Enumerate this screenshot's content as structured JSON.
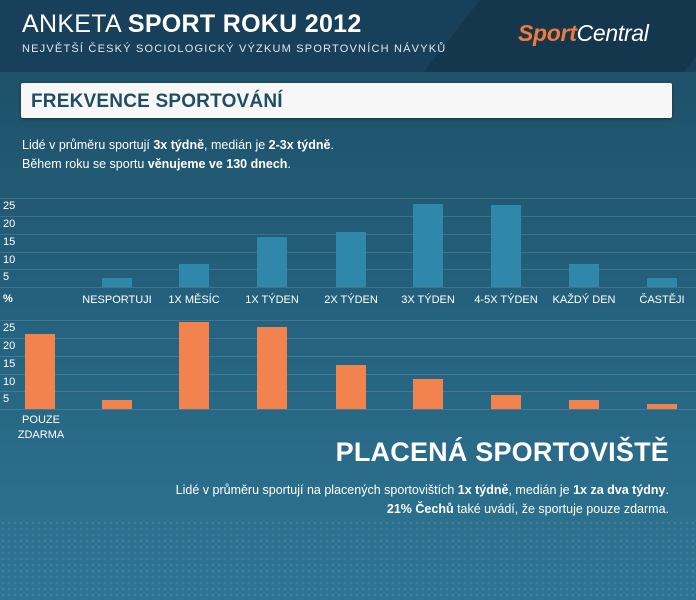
{
  "header": {
    "title_regular": "ANKETA ",
    "title_bold": "SPORT ROKU 2012",
    "subtitle": "NEJVĚTŠÍ ČESKÝ SOCIOLOGICKÝ VÝZKUM SPORTOVNÍCH NÁVYKŮ",
    "logo_part1": "Sport",
    "logo_part2": "Central"
  },
  "section": {
    "title": "FREKVENCE SPORTOVÁNÍ",
    "intro_l1_a": "Lidé v průměru sportují ",
    "intro_l1_b": "3x týdně",
    "intro_l1_c": ", medián je ",
    "intro_l1_d": "2-3x týdně",
    "intro_l1_e": ".",
    "intro_l2_a": "Během roku se sportu ",
    "intro_l2_b": "věnujeme ve 130 dnech",
    "intro_l2_c": "."
  },
  "paid": {
    "title": "PLACENÁ SPORTOVIŠTĚ",
    "l1_a": "Lidé v průměru sportují na placených sportovištích ",
    "l1_b": "1x týdně",
    "l1_c": ", medián je ",
    "l1_d": "1x za dva týdny",
    "l1_e": ".",
    "l2_a": "21% Čechů",
    "l2_b": " také uvádí, že sportuje pouze zdarma."
  },
  "chart_data": [
    {
      "type": "bar",
      "ylabel": "%",
      "ylim": [
        0,
        27
      ],
      "yticks": [
        5,
        10,
        15,
        20,
        25
      ],
      "categories": [
        "NESPORTUJI",
        "1X MĚSÍC",
        "1X TÝDEN",
        "2X TÝDEN",
        "3X TÝDEN",
        "4-5X TÝDEN",
        "KAŽDÝ DEN",
        "ČASTĚJI"
      ],
      "values": [
        2.5,
        6.5,
        14,
        15.5,
        23.5,
        23,
        6.5,
        2.5
      ],
      "color": "#2f88aa"
    },
    {
      "type": "bar",
      "ylim": [
        0,
        27
      ],
      "yticks": [
        5,
        10,
        15,
        20,
        25
      ],
      "categories": [
        "POUZE ZDARMA",
        "NESPORTUJI",
        "1X MĚSÍC",
        "1X TÝDEN",
        "2X TÝDEN",
        "3X TÝDEN",
        "4-5X TÝDEN",
        "KAŽDÝ DEN",
        "ČASTĚJI"
      ],
      "values": [
        21,
        2.5,
        24.5,
        23,
        12.5,
        8.5,
        4,
        2.5,
        1.5
      ],
      "color": "#f2834f"
    }
  ]
}
